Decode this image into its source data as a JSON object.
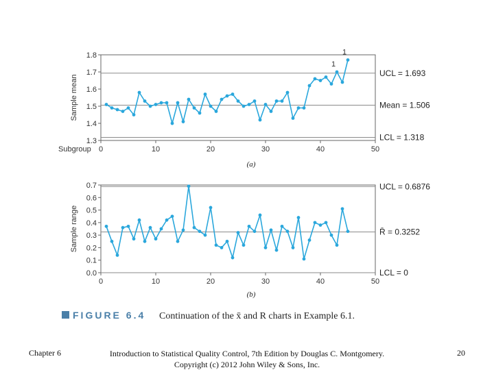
{
  "chart_data": [
    {
      "type": "line",
      "ylabel": "Sample mean",
      "xlabel_prefix": "Subgroup",
      "sub_label": "(a)",
      "ylim": [
        1.3,
        1.8
      ],
      "xlim": [
        0,
        50
      ],
      "yticks": [
        "1.3",
        "1.4",
        "1.5",
        "1.6",
        "1.7",
        "1.8"
      ],
      "xticks": [
        "0",
        "10",
        "20",
        "30",
        "40",
        "50"
      ],
      "control_lines": [
        {
          "label": "UCL = 1.693",
          "value": 1.693
        },
        {
          "label": "Mean = 1.506",
          "value": 1.506
        },
        {
          "label": "LCL = 1.318",
          "value": 1.318
        }
      ],
      "annotations": [
        {
          "text": "1",
          "x": 43
        },
        {
          "text": "1",
          "x": 45
        }
      ],
      "series": [
        {
          "x": [
            1,
            2,
            3,
            4,
            5,
            6,
            7,
            8,
            9,
            10,
            11,
            12,
            13,
            14,
            15,
            16,
            17,
            18,
            19,
            20,
            21,
            22,
            23,
            24,
            25,
            26,
            27,
            28,
            29,
            30,
            31,
            32,
            33,
            34,
            35,
            36,
            37,
            38,
            39,
            40,
            41,
            42,
            43,
            44,
            45
          ],
          "values": [
            1.51,
            1.49,
            1.48,
            1.47,
            1.49,
            1.45,
            1.58,
            1.53,
            1.5,
            1.51,
            1.52,
            1.52,
            1.4,
            1.52,
            1.41,
            1.54,
            1.49,
            1.46,
            1.57,
            1.5,
            1.47,
            1.54,
            1.56,
            1.57,
            1.53,
            1.5,
            1.51,
            1.53,
            1.42,
            1.51,
            1.47,
            1.53,
            1.53,
            1.58,
            1.43,
            1.49,
            1.49,
            1.62,
            1.66,
            1.65,
            1.67,
            1.63,
            1.7,
            1.64,
            1.77
          ]
        }
      ]
    },
    {
      "type": "line",
      "ylabel": "Sample range",
      "sub_label": "(b)",
      "ylim": [
        0.0,
        0.7
      ],
      "xlim": [
        0,
        50
      ],
      "yticks": [
        "0.0",
        "0.1",
        "0.2",
        "0.3",
        "0.4",
        "0.5",
        "0.6",
        "0.7"
      ],
      "xticks": [
        "0",
        "10",
        "20",
        "30",
        "40",
        "50"
      ],
      "control_lines": [
        {
          "label": "UCL = 0.6876",
          "value": 0.6876
        },
        {
          "label": "R̄ = 0.3252",
          "value": 0.3252
        },
        {
          "label": "LCL = 0",
          "value": 0.0
        }
      ],
      "series": [
        {
          "x": [
            1,
            2,
            3,
            4,
            5,
            6,
            7,
            8,
            9,
            10,
            11,
            12,
            13,
            14,
            15,
            16,
            17,
            18,
            19,
            20,
            21,
            22,
            23,
            24,
            25,
            26,
            27,
            28,
            29,
            30,
            31,
            32,
            33,
            34,
            35,
            36,
            37,
            38,
            39,
            40,
            41,
            42,
            43,
            44,
            45
          ],
          "values": [
            0.37,
            0.25,
            0.14,
            0.36,
            0.37,
            0.27,
            0.42,
            0.25,
            0.36,
            0.27,
            0.35,
            0.42,
            0.45,
            0.25,
            0.34,
            0.69,
            0.36,
            0.33,
            0.3,
            0.52,
            0.22,
            0.2,
            0.25,
            0.12,
            0.32,
            0.22,
            0.37,
            0.33,
            0.46,
            0.2,
            0.34,
            0.18,
            0.37,
            0.33,
            0.2,
            0.44,
            0.11,
            0.26,
            0.4,
            0.38,
            0.4,
            0.3,
            0.22,
            0.51,
            0.33
          ]
        }
      ]
    }
  ],
  "caption": {
    "figure_label": "FIGURE 6.4",
    "text": "Continuation of the x̄ and R charts in Example 6.1."
  },
  "footer": {
    "left": "Chapter 6",
    "center_line1": "Introduction to Statistical Quality Control, 7th Edition by Douglas C. Montgomery.",
    "center_line2": "Copyright (c) 2012 John Wiley & Sons, Inc.",
    "right": "20"
  },
  "colors": {
    "series": "#2aa7dc",
    "grid": "#8a8a8a",
    "frame": "#666666",
    "caption_square": "#4a7fa8"
  }
}
